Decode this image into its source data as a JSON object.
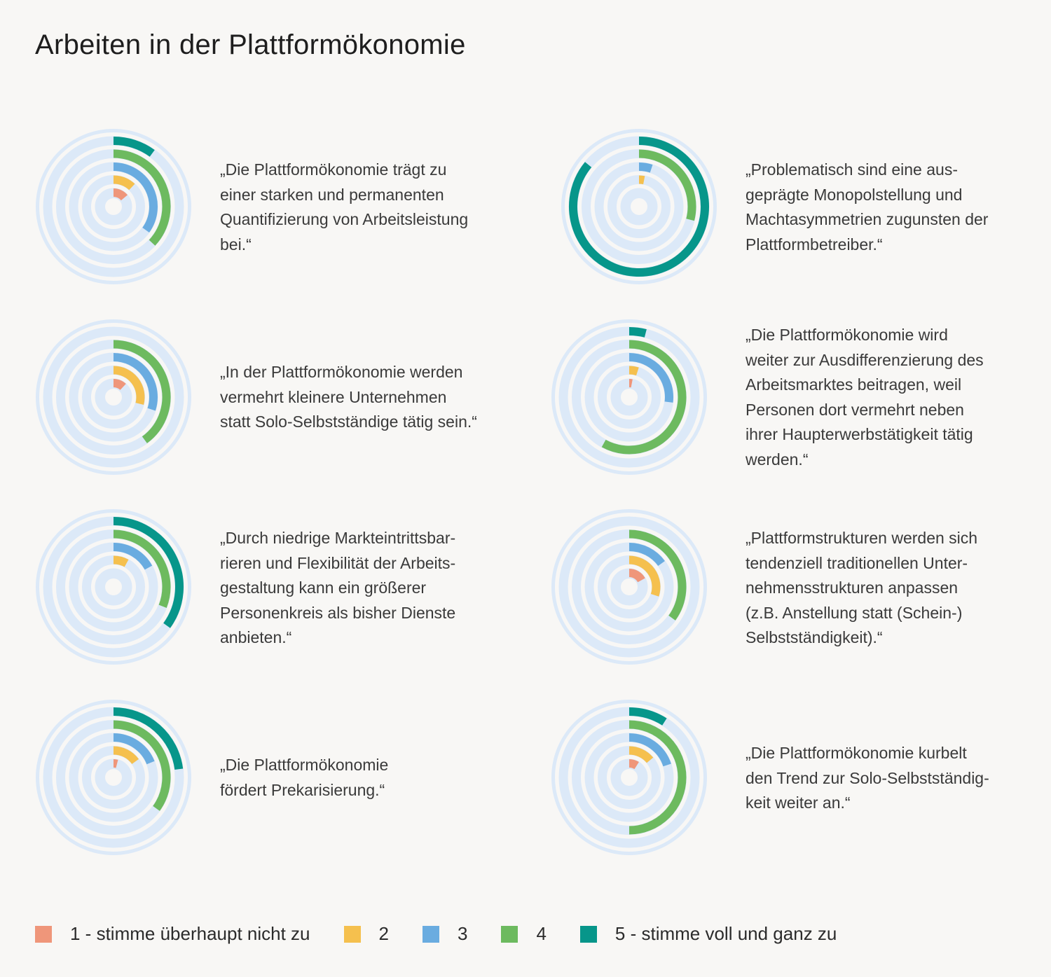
{
  "title": "Arbeiten in der Plattformökonomie",
  "colors": {
    "track": "#dce9f8",
    "1": "#ef967a",
    "2": "#f5c04e",
    "3": "#6aace0",
    "4": "#6dba5f",
    "5": "#07968a"
  },
  "legend": [
    {
      "key": "1",
      "label": "1 - stimme überhaupt nicht zu"
    },
    {
      "key": "2",
      "label": "2"
    },
    {
      "key": "3",
      "label": "3"
    },
    {
      "key": "4",
      "label": "4"
    },
    {
      "key": "5",
      "label": "5 - stimme voll und ganz zu"
    }
  ],
  "chart_data": {
    "type": "radial-bar",
    "unit": "share of responses (%)",
    "categories": [
      "1 - stimme überhaupt nicht zu",
      "2",
      "3",
      "4",
      "5 - stimme voll und ganz zu"
    ],
    "statements": [
      {
        "text": "„Die Plattformökonomie trägt zu\neiner starken und permanenten\nQuantifizierung von Arbeitsleistung\nbei.“",
        "values": [
          14,
          12,
          35,
          37,
          10
        ]
      },
      {
        "text": "„Problematisch sind eine aus-\ngeprägte Monopolstellung und\nMachtasymmetrien zugunsten der\nPlattformbetreiber.“",
        "values": [
          0,
          3,
          5,
          29,
          86
        ]
      },
      {
        "text": "„In der Plattformökonomie werden\nvermehrt kleinere Unternehmen\nstatt Solo-Selbstständige tätig sein.“",
        "values": [
          12,
          29,
          30,
          40,
          0
        ]
      },
      {
        "text": "„Die Plattformökonomie wird\nweiter zur Ausdifferenzierung des\nArbeitsmarktes beitragen, weil\nPersonen dort vermehrt neben\nihrer Haupterwerbstätigkeit tätig\nwerden.“",
        "values": [
          3,
          5,
          27,
          58,
          4
        ]
      },
      {
        "text": "„Durch niedrige Markteintrittsbar-\nrieren und Flexibilität der Arbeits-\ngestaltung kann ein größerer\nPersonenkreis als bisher Dienste\nanbieten.“",
        "values": [
          0,
          8,
          17,
          31,
          35
        ]
      },
      {
        "text": "„Plattformstrukturen werden sich\ntendenziell traditionellen Unter-\nnehmensstrukturen anpassen\n(z.B. Anstellung statt (Schein-)\nSelbstständigkeit).“",
        "values": [
          17,
          30,
          15,
          35,
          0
        ]
      },
      {
        "text": "„Die Plattformökonomie\nfördert Prekarisierung.“",
        "values": [
          4,
          15,
          19,
          35,
          23
        ]
      },
      {
        "text": "„Die Plattformökonomie kurbelt\nden Trend zur Solo-Selbstständig-\nkeit weiter an.“",
        "values": [
          9,
          14,
          20,
          50,
          9
        ]
      }
    ]
  }
}
